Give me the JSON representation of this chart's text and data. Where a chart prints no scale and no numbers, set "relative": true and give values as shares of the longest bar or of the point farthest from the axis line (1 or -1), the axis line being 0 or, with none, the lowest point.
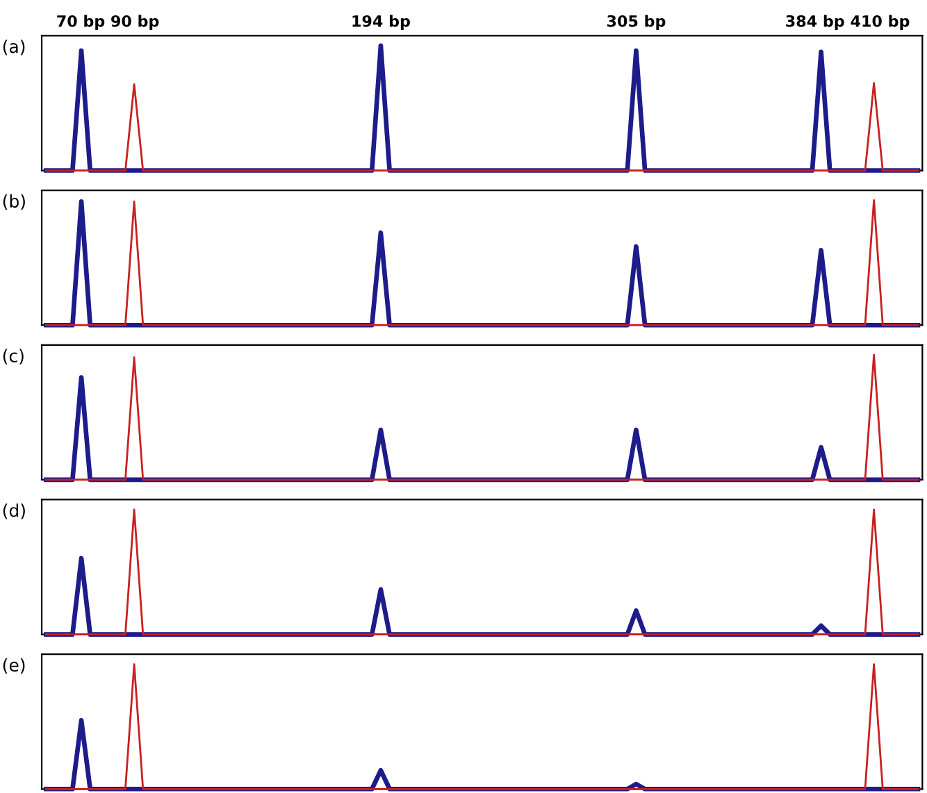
{
  "chart_data": [
    {
      "type": "line",
      "title": "(a)",
      "relative": true,
      "categories": [
        null,
        null,
        null,
        null,
        null,
        null,
        null,
        null,
        null,
        null,
        null,
        null,
        null,
        null,
        null,
        null,
        null,
        null,
        null,
        null,
        null,
        null,
        null,
        null,
        null,
        null,
        null,
        null,
        null,
        null,
        null,
        null,
        null,
        null,
        null,
        null,
        null,
        null,
        null,
        null,
        null,
        null,
        null,
        null,
        null,
        null,
        null,
        null,
        null,
        null,
        null,
        null,
        null,
        null,
        null,
        null,
        null,
        null,
        null,
        null,
        null,
        null,
        null,
        null,
        null,
        null,
        null,
        null,
        null,
        null,
        null,
        null,
        null,
        null,
        null,
        null,
        null,
        null,
        null,
        null,
        null,
        null,
        null,
        null,
        null,
        null,
        null,
        null,
        null,
        null,
        null,
        null,
        null,
        null,
        null,
        null,
        null,
        null,
        null,
        null
      ],
      "annotations": [
        "70 bp",
        "90 bp",
        "194 bp",
        "305 bp",
        "384 bp",
        "410 bp"
      ],
      "series": [
        {
          "color": "#1c1c8a",
          "values": [
            0,
            0,
            0,
            0,
            0.96,
            0,
            0,
            0,
            0,
            0,
            0,
            0,
            0,
            0,
            0,
            0,
            0,
            0,
            0,
            0,
            0,
            0,
            0,
            0,
            0,
            0,
            0,
            0,
            0,
            0,
            0,
            0,
            0,
            0,
            0,
            0,
            0,
            0,
            1,
            0,
            0,
            0,
            0,
            0,
            0,
            0,
            0,
            0,
            0,
            0,
            0,
            0,
            0,
            0,
            0,
            0,
            0,
            0,
            0,
            0,
            0,
            0,
            0,
            0,
            0,
            0,
            0,
            0.96,
            0,
            0,
            0,
            0,
            0,
            0,
            0,
            0,
            0,
            0,
            0,
            0,
            0,
            0,
            0,
            0,
            0,
            0,
            0,
            0,
            0.95,
            0,
            0,
            0,
            0,
            0,
            0,
            0,
            0,
            0,
            0,
            0
          ]
        },
        {
          "color": "#c82020",
          "values": [
            0,
            0,
            0,
            0,
            0,
            0,
            0,
            0,
            0,
            0,
            0.69,
            0,
            0,
            0,
            0,
            0,
            0,
            0,
            0,
            0,
            0,
            0,
            0,
            0,
            0,
            0,
            0,
            0,
            0,
            0,
            0,
            0,
            0,
            0,
            0,
            0,
            0,
            0,
            0,
            0,
            0,
            0,
            0,
            0,
            0,
            0,
            0,
            0,
            0,
            0,
            0,
            0,
            0,
            0,
            0,
            0,
            0,
            0,
            0,
            0,
            0,
            0,
            0,
            0,
            0,
            0,
            0,
            0,
            0,
            0,
            0,
            0,
            0,
            0,
            0,
            0,
            0,
            0,
            0,
            0,
            0,
            0,
            0,
            0,
            0,
            0,
            0,
            0,
            0,
            0,
            0,
            0,
            0,
            0,
            0.7,
            0,
            0,
            0,
            0,
            0
          ]
        }
      ]
    },
    {
      "type": "line",
      "title": "(b)",
      "relative": true,
      "categories": [
        null,
        null,
        null,
        null,
        null,
        null,
        null,
        null,
        null,
        null,
        null,
        null,
        null,
        null,
        null,
        null,
        null,
        null,
        null,
        null,
        null,
        null,
        null,
        null,
        null,
        null,
        null,
        null,
        null,
        null,
        null,
        null,
        null,
        null,
        null,
        null,
        null,
        null,
        null,
        null,
        null,
        null,
        null,
        null,
        null,
        null,
        null,
        null,
        null,
        null,
        null,
        null,
        null,
        null,
        null,
        null,
        null,
        null,
        null,
        null,
        null,
        null,
        null,
        null,
        null,
        null,
        null,
        null,
        null,
        null,
        null,
        null,
        null,
        null,
        null,
        null,
        null,
        null,
        null,
        null,
        null,
        null,
        null,
        null,
        null,
        null,
        null,
        null,
        null,
        null,
        null,
        null,
        null,
        null,
        null,
        null,
        null,
        null,
        null,
        null
      ],
      "series": [
        {
          "color": "#1c1c8a",
          "values": [
            0,
            0,
            0,
            0,
            0.99,
            0,
            0,
            0,
            0,
            0,
            0,
            0,
            0,
            0,
            0,
            0,
            0,
            0,
            0,
            0,
            0,
            0,
            0,
            0,
            0,
            0,
            0,
            0,
            0,
            0,
            0,
            0,
            0,
            0,
            0,
            0,
            0,
            0,
            0.74,
            0,
            0,
            0,
            0,
            0,
            0,
            0,
            0,
            0,
            0,
            0,
            0,
            0,
            0,
            0,
            0,
            0,
            0,
            0,
            0,
            0,
            0,
            0,
            0,
            0,
            0,
            0,
            0,
            0.63,
            0,
            0,
            0,
            0,
            0,
            0,
            0,
            0,
            0,
            0,
            0,
            0,
            0,
            0,
            0,
            0,
            0,
            0,
            0,
            0,
            0.6,
            0,
            0,
            0,
            0,
            0,
            0,
            0,
            0,
            0,
            0,
            0
          ]
        },
        {
          "color": "#c82020",
          "values": [
            0,
            0,
            0,
            0,
            0,
            0,
            0,
            0,
            0,
            0,
            0.99,
            0,
            0,
            0,
            0,
            0,
            0,
            0,
            0,
            0,
            0,
            0,
            0,
            0,
            0,
            0,
            0,
            0,
            0,
            0,
            0,
            0,
            0,
            0,
            0,
            0,
            0,
            0,
            0,
            0,
            0,
            0,
            0,
            0,
            0,
            0,
            0,
            0,
            0,
            0,
            0,
            0,
            0,
            0,
            0,
            0,
            0,
            0,
            0,
            0,
            0,
            0,
            0,
            0,
            0,
            0,
            0,
            0,
            0,
            0,
            0,
            0,
            0,
            0,
            0,
            0,
            0,
            0,
            0,
            0,
            0,
            0,
            0,
            0,
            0,
            0,
            0,
            0,
            0,
            0,
            0,
            0,
            0,
            0,
            1,
            0,
            0,
            0,
            0,
            0
          ]
        }
      ]
    },
    {
      "type": "line",
      "title": "(c)",
      "relative": true,
      "categories": [
        null,
        null,
        null,
        null,
        null,
        null,
        null,
        null,
        null,
        null,
        null,
        null,
        null,
        null,
        null,
        null,
        null,
        null,
        null,
        null,
        null,
        null,
        null,
        null,
        null,
        null,
        null,
        null,
        null,
        null,
        null,
        null,
        null,
        null,
        null,
        null,
        null,
        null,
        null,
        null,
        null,
        null,
        null,
        null,
        null,
        null,
        null,
        null,
        null,
        null,
        null,
        null,
        null,
        null,
        null,
        null,
        null,
        null,
        null,
        null,
        null,
        null,
        null,
        null,
        null,
        null,
        null,
        null,
        null,
        null,
        null,
        null,
        null,
        null,
        null,
        null,
        null,
        null,
        null,
        null,
        null,
        null,
        null,
        null,
        null,
        null,
        null,
        null,
        null,
        null,
        null,
        null,
        null,
        null,
        null,
        null,
        null,
        null,
        null,
        null
      ],
      "series": [
        {
          "color": "#1c1c8a",
          "values": [
            0,
            0,
            0,
            0,
            0.82,
            0,
            0,
            0,
            0,
            0,
            0,
            0,
            0,
            0,
            0,
            0,
            0,
            0,
            0,
            0,
            0,
            0,
            0,
            0,
            0,
            0,
            0,
            0,
            0,
            0,
            0,
            0,
            0,
            0,
            0,
            0,
            0,
            0,
            0.4,
            0,
            0,
            0,
            0,
            0,
            0,
            0,
            0,
            0,
            0,
            0,
            0,
            0,
            0,
            0,
            0,
            0,
            0,
            0,
            0,
            0,
            0,
            0,
            0,
            0,
            0,
            0,
            0,
            0.4,
            0,
            0,
            0,
            0,
            0,
            0,
            0,
            0,
            0,
            0,
            0,
            0,
            0,
            0,
            0,
            0,
            0,
            0,
            0,
            0,
            0.26,
            0,
            0,
            0,
            0,
            0,
            0,
            0,
            0,
            0,
            0,
            0
          ]
        },
        {
          "color": "#c82020",
          "values": [
            0,
            0,
            0,
            0,
            0,
            0,
            0,
            0,
            0,
            0,
            0.98,
            0,
            0,
            0,
            0,
            0,
            0,
            0,
            0,
            0,
            0,
            0,
            0,
            0,
            0,
            0,
            0,
            0,
            0,
            0,
            0,
            0,
            0,
            0,
            0,
            0,
            0,
            0,
            0,
            0,
            0,
            0,
            0,
            0,
            0,
            0,
            0,
            0,
            0,
            0,
            0,
            0,
            0,
            0,
            0,
            0,
            0,
            0,
            0,
            0,
            0,
            0,
            0,
            0,
            0,
            0,
            0,
            0,
            0,
            0,
            0,
            0,
            0,
            0,
            0,
            0,
            0,
            0,
            0,
            0,
            0,
            0,
            0,
            0,
            0,
            0,
            0,
            0,
            0,
            0,
            0,
            0,
            0,
            0,
            1,
            0,
            0,
            0,
            0,
            0
          ]
        }
      ]
    },
    {
      "type": "line",
      "title": "(d)",
      "relative": true,
      "categories": [
        null,
        null,
        null,
        null,
        null,
        null,
        null,
        null,
        null,
        null,
        null,
        null,
        null,
        null,
        null,
        null,
        null,
        null,
        null,
        null,
        null,
        null,
        null,
        null,
        null,
        null,
        null,
        null,
        null,
        null,
        null,
        null,
        null,
        null,
        null,
        null,
        null,
        null,
        null,
        null,
        null,
        null,
        null,
        null,
        null,
        null,
        null,
        null,
        null,
        null,
        null,
        null,
        null,
        null,
        null,
        null,
        null,
        null,
        null,
        null,
        null,
        null,
        null,
        null,
        null,
        null,
        null,
        null,
        null,
        null,
        null,
        null,
        null,
        null,
        null,
        null,
        null,
        null,
        null,
        null,
        null,
        null,
        null,
        null,
        null,
        null,
        null,
        null,
        null,
        null,
        null,
        null,
        null,
        null,
        null,
        null,
        null,
        null,
        null,
        null
      ],
      "series": [
        {
          "color": "#1c1c8a",
          "values": [
            0,
            0,
            0,
            0,
            0.61,
            0,
            0,
            0,
            0,
            0,
            0,
            0,
            0,
            0,
            0,
            0,
            0,
            0,
            0,
            0,
            0,
            0,
            0,
            0,
            0,
            0,
            0,
            0,
            0,
            0,
            0,
            0,
            0,
            0,
            0,
            0,
            0,
            0,
            0.36,
            0,
            0,
            0,
            0,
            0,
            0,
            0,
            0,
            0,
            0,
            0,
            0,
            0,
            0,
            0,
            0,
            0,
            0,
            0,
            0,
            0,
            0,
            0,
            0,
            0,
            0,
            0,
            0,
            0.19,
            0,
            0,
            0,
            0,
            0,
            0,
            0,
            0,
            0,
            0,
            0,
            0,
            0,
            0,
            0,
            0,
            0,
            0,
            0,
            0,
            0.07,
            0,
            0,
            0,
            0,
            0,
            0,
            0,
            0,
            0,
            0,
            0
          ]
        },
        {
          "color": "#c82020",
          "values": [
            0,
            0,
            0,
            0,
            0,
            0,
            0,
            0,
            0,
            0,
            1,
            0,
            0,
            0,
            0,
            0,
            0,
            0,
            0,
            0,
            0,
            0,
            0,
            0,
            0,
            0,
            0,
            0,
            0,
            0,
            0,
            0,
            0,
            0,
            0,
            0,
            0,
            0,
            0,
            0,
            0,
            0,
            0,
            0,
            0,
            0,
            0,
            0,
            0,
            0,
            0,
            0,
            0,
            0,
            0,
            0,
            0,
            0,
            0,
            0,
            0,
            0,
            0,
            0,
            0,
            0,
            0,
            0,
            0,
            0,
            0,
            0,
            0,
            0,
            0,
            0,
            0,
            0,
            0,
            0,
            0,
            0,
            0,
            0,
            0,
            0,
            0,
            0,
            0,
            0,
            0,
            0,
            0,
            0,
            1,
            0,
            0,
            0,
            0,
            0
          ]
        }
      ]
    },
    {
      "type": "line",
      "title": "(e)",
      "relative": true,
      "categories": [
        null,
        null,
        null,
        null,
        null,
        null,
        null,
        null,
        null,
        null,
        null,
        null,
        null,
        null,
        null,
        null,
        null,
        null,
        null,
        null,
        null,
        null,
        null,
        null,
        null,
        null,
        null,
        null,
        null,
        null,
        null,
        null,
        null,
        null,
        null,
        null,
        null,
        null,
        null,
        null,
        null,
        null,
        null,
        null,
        null,
        null,
        null,
        null,
        null,
        null,
        null,
        null,
        null,
        null,
        null,
        null,
        null,
        null,
        null,
        null,
        null,
        null,
        null,
        null,
        null,
        null,
        null,
        null,
        null,
        null,
        null,
        null,
        null,
        null,
        null,
        null,
        null,
        null,
        null,
        null,
        null,
        null,
        null,
        null,
        null,
        null,
        null,
        null,
        null,
        null,
        null,
        null,
        null,
        null,
        null,
        null,
        null,
        null,
        null,
        null
      ],
      "series": [
        {
          "color": "#1c1c8a",
          "values": [
            0,
            0,
            0,
            0,
            0.55,
            0,
            0,
            0,
            0,
            0,
            0,
            0,
            0,
            0,
            0,
            0,
            0,
            0,
            0,
            0,
            0,
            0,
            0,
            0,
            0,
            0,
            0,
            0,
            0,
            0,
            0,
            0,
            0,
            0,
            0,
            0,
            0,
            0,
            0.15,
            0,
            0,
            0,
            0,
            0,
            0,
            0,
            0,
            0,
            0,
            0,
            0,
            0,
            0,
            0,
            0,
            0,
            0,
            0,
            0,
            0,
            0,
            0,
            0,
            0,
            0,
            0,
            0,
            0.04,
            0,
            0,
            0,
            0,
            0,
            0,
            0,
            0,
            0,
            0,
            0,
            0,
            0,
            0,
            0,
            0,
            0,
            0,
            0,
            0,
            0,
            0,
            0,
            0,
            0,
            0,
            0,
            0,
            0,
            0,
            0,
            0
          ]
        },
        {
          "color": "#c82020",
          "values": [
            0,
            0,
            0,
            0,
            0,
            0,
            0,
            0,
            0,
            0,
            1,
            0,
            0,
            0,
            0,
            0,
            0,
            0,
            0,
            0,
            0,
            0,
            0,
            0,
            0,
            0,
            0,
            0,
            0,
            0,
            0,
            0,
            0,
            0,
            0,
            0,
            0,
            0,
            0,
            0,
            0,
            0,
            0,
            0,
            0,
            0,
            0,
            0,
            0,
            0,
            0,
            0,
            0,
            0,
            0,
            0,
            0,
            0,
            0,
            0,
            0,
            0,
            0,
            0,
            0,
            0,
            0,
            0,
            0,
            0,
            0,
            0,
            0,
            0,
            0,
            0,
            0,
            0,
            0,
            0,
            0,
            0,
            0,
            0,
            0,
            0,
            0,
            0,
            0,
            0,
            0,
            0,
            0,
            0,
            1,
            0,
            0,
            0,
            0,
            0
          ]
        }
      ]
    }
  ]
}
